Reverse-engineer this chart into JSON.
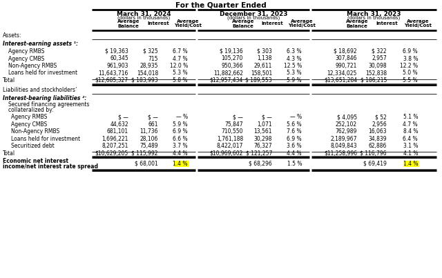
{
  "title": "For the Quarter Ended",
  "period_headers": [
    "March 31, 2024",
    "December 31, 2023",
    "March 31, 2023"
  ],
  "subheader": "(dollars in thousands)",
  "col_headers": [
    "Average\nBalance",
    "Interest",
    "Average\nYield/Cost"
  ],
  "sections": {
    "assets_label": "Assets:",
    "interest_earning_label": "Interest-earning assets ¹:",
    "rows_assets": [
      [
        "Agency RMBS",
        "$ 19,363",
        "$ 325",
        "6.7 %",
        "$ 19,136",
        "$ 303",
        "6.3 %",
        "$ 18,692",
        "$ 322",
        "6.9 %"
      ],
      [
        "Agency CMBS",
        "60,345",
        "715",
        "4.7 %",
        "105,270",
        "1,138",
        "4.3 %",
        "307,846",
        "2,957",
        "3.8 %"
      ],
      [
        "Non-Agency RMBS",
        "961,903",
        "28,935",
        "12.0 %",
        "950,366",
        "29,611",
        "12.5 %",
        "990,721",
        "30,098",
        "12.2 %"
      ],
      [
        "Loans held for investment",
        "11,643,716",
        "154,018",
        "5.3 %",
        "11,882,662",
        "158,501",
        "5.3 %",
        "12,334,025",
        "152,838",
        "5.0 %"
      ]
    ],
    "total_assets": [
      "Total",
      "$12,685,327",
      "$ 183,993",
      "5.8 %",
      "$12,957,434",
      "$ 189,553",
      "5.9 %",
      "$13,651,284",
      "$ 186,215",
      "5.5 %"
    ],
    "liabilities_label": "Liabilities and stockholders’",
    "interest_bearing_label": "Interest-bearing liabilities ²:",
    "rows_liabilities": [
      [
        "Agency RMBS",
        "$ —",
        "$ —",
        "— %",
        "$ —",
        "$ —",
        "— %",
        "$ 4,095",
        "$ 52",
        "5.1 %"
      ],
      [
        "Agency CMBS",
        "44,632",
        "661",
        "5.9 %",
        "75,847",
        "1,071",
        "5.6 %",
        "252,102",
        "2,956",
        "4.7 %"
      ],
      [
        "Non-Agency RMBS",
        "681,101",
        "11,736",
        "6.9 %",
        "710,550",
        "13,561",
        "7.6 %",
        "762,989",
        "16,063",
        "8.4 %"
      ],
      [
        "Loans held for investment",
        "1,696,221",
        "28,106",
        "6.6 %",
        "1,761,188",
        "30,298",
        "6.9 %",
        "2,189,967",
        "34,839",
        "6.4 %"
      ],
      [
        "Securitized debt",
        "8,207,251",
        "75,489",
        "3.7 %",
        "8,422,017",
        "76,327",
        "3.6 %",
        "8,049,843",
        "62,886",
        "3.1 %"
      ]
    ],
    "total_liabilities": [
      "Total",
      "$10,629,205",
      "$ 115,992",
      "4.4 %",
      "$10,969,602",
      "$ 121,257",
      "4.4 %",
      "$11,258,996",
      "$ 116,796",
      "4.1 %"
    ],
    "bottom_label1": "Economic net interest",
    "bottom_label2": "income/net interest rate spread",
    "bottom_row_p1_int": "$ 68,001",
    "bottom_row_p1_yld": "1.4 %",
    "bottom_row_p2_int": "$ 68,296",
    "bottom_row_p2_yld": "1.5 %",
    "bottom_row_p3_int": "$ 69,419",
    "bottom_row_p3_yld": "1.4 %",
    "highlight_color": "#FFFF00"
  },
  "bg_color": "#FFFFFF",
  "text_color": "#000000",
  "font_size": 5.5,
  "title_font_size": 7.5
}
